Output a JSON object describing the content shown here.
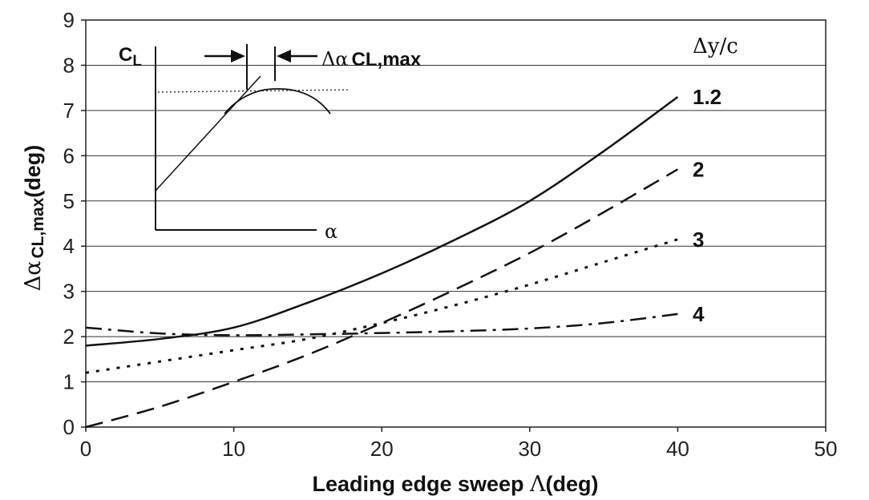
{
  "chart_data": {
    "type": "line",
    "xlabel_text": "Leading edge sweep ",
    "xlabel_symbol": "Λ",
    "xlabel_unit": "(deg)",
    "ylabel_symbol": "Δα",
    "ylabel_sub": "CL,max",
    "ylabel_unit": "(deg)",
    "xlim": [
      0,
      50
    ],
    "ylim": [
      0,
      9
    ],
    "xticks": [
      0,
      10,
      20,
      30,
      40,
      50
    ],
    "yticks": [
      0,
      1,
      2,
      3,
      4,
      5,
      6,
      7,
      8,
      9
    ],
    "grid": "horizontal",
    "legend_title": "Δy/c",
    "series": [
      {
        "name": "1.2",
        "style": "solid",
        "x": [
          0,
          5,
          10,
          15,
          20,
          25,
          30,
          35,
          40
        ],
        "y": [
          1.8,
          1.95,
          2.2,
          2.75,
          3.4,
          4.15,
          5.0,
          6.1,
          7.3
        ]
      },
      {
        "name": "2",
        "style": "dash",
        "x": [
          0,
          5,
          10,
          15,
          20,
          25,
          30,
          35,
          40
        ],
        "y": [
          0.0,
          0.45,
          1.0,
          1.6,
          2.3,
          3.05,
          3.85,
          4.75,
          5.7
        ]
      },
      {
        "name": "3",
        "style": "dot",
        "x": [
          0,
          5,
          10,
          15,
          20,
          25,
          30,
          35,
          40
        ],
        "y": [
          1.2,
          1.45,
          1.7,
          1.95,
          2.3,
          2.7,
          3.15,
          3.65,
          4.15
        ]
      },
      {
        "name": "4",
        "style": "dashdot",
        "x": [
          0,
          5,
          10,
          15,
          20,
          25,
          30,
          35,
          40
        ],
        "y": [
          2.2,
          2.07,
          2.03,
          2.05,
          2.08,
          2.12,
          2.18,
          2.3,
          2.5
        ]
      }
    ]
  },
  "inset": {
    "cl_main": "C",
    "cl_sub": "L",
    "delta_alpha_symbol": "Δα",
    "delta_alpha_sub": "CL,max",
    "alpha_label": "α"
  }
}
